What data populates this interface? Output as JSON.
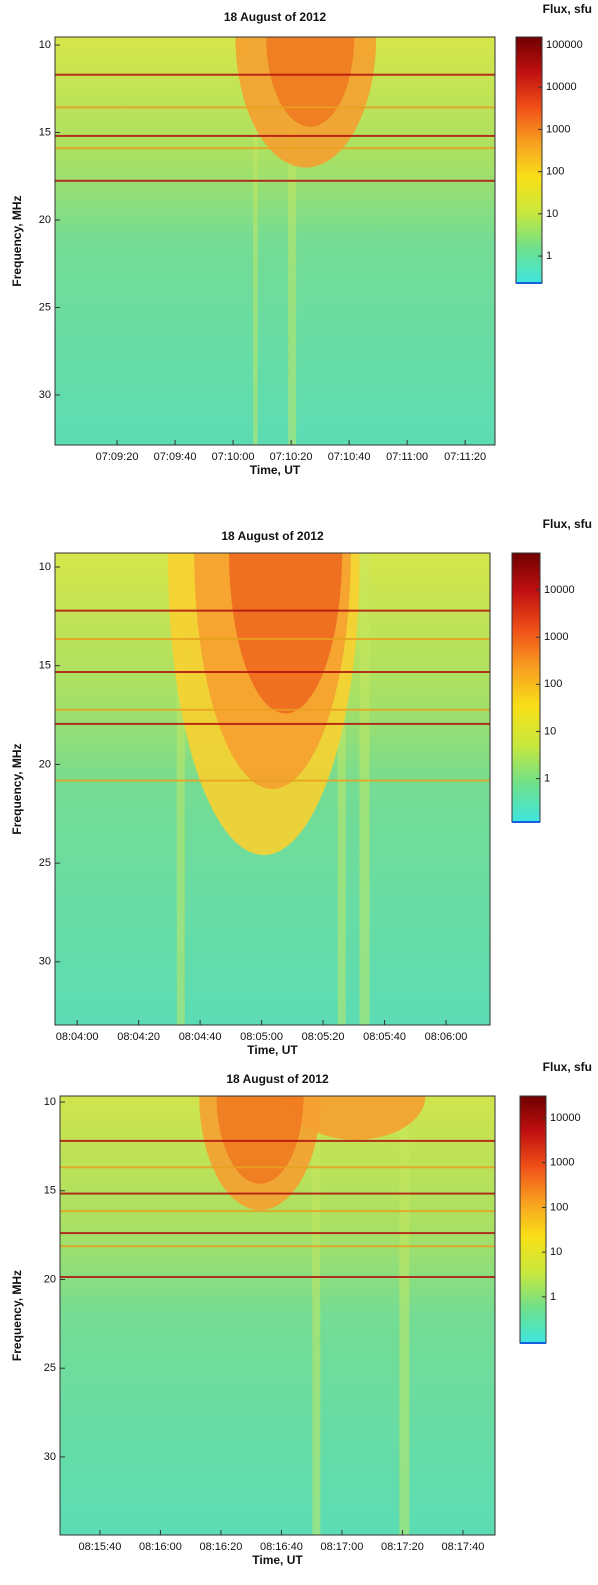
{
  "chart_data": [
    {
      "type": "heatmap",
      "title": "18 August of 2012",
      "x_label": "Time, UT",
      "y_label": "Frequency, MHz",
      "xlim": [
        25738.6,
        25890.3
      ],
      "xticks": [
        {
          "value": 25760,
          "label": "07:09:20"
        },
        {
          "value": 25780,
          "label": "07:09:40"
        },
        {
          "value": 25800,
          "label": "07:10:00"
        },
        {
          "value": 25820,
          "label": "07:10:20"
        },
        {
          "value": 25840,
          "label": "07:10:40"
        },
        {
          "value": 25860,
          "label": "07:11:00"
        },
        {
          "value": 25880,
          "label": "07:11:20"
        }
      ],
      "ylim": [
        9.54,
        32.86
      ],
      "y_inverted": true,
      "yticks": [
        10,
        15,
        20,
        25,
        30
      ],
      "colorbar": {
        "label": "Flux, sfu",
        "log": true,
        "lim": [
          0.23,
          155000
        ],
        "ticks": [
          1,
          10,
          100,
          1000,
          10000,
          100000
        ],
        "colormap": [
          "#3ee6e0",
          "#6fe08a",
          "#c8e83c",
          "#f8e018",
          "#f8a020",
          "#f05018",
          "#c01010",
          "#700000"
        ]
      }
    },
    {
      "type": "heatmap",
      "title": "18 August of 2012",
      "x_label": "Time, UT",
      "y_label": "Frequency, MHz",
      "xlim": [
        29032.8,
        29174.3
      ],
      "xticks": [
        {
          "value": 29040,
          "label": "08:04:00"
        },
        {
          "value": 29060,
          "label": "08:04:20"
        },
        {
          "value": 29080,
          "label": "08:04:40"
        },
        {
          "value": 29100,
          "label": "08:05:00"
        },
        {
          "value": 29120,
          "label": "08:05:20"
        },
        {
          "value": 29140,
          "label": "08:05:40"
        },
        {
          "value": 29160,
          "label": "08:06:00"
        }
      ],
      "ylim": [
        9.29,
        33.2
      ],
      "y_inverted": true,
      "yticks": [
        10,
        15,
        20,
        25,
        30
      ],
      "colorbar": {
        "label": "Flux, sfu",
        "log": true,
        "lim": [
          0.12,
          61000
        ],
        "ticks": [
          1,
          10,
          100,
          1000,
          10000
        ],
        "colormap": [
          "#3ee6e0",
          "#6fe08a",
          "#c8e83c",
          "#f8e018",
          "#f8a020",
          "#f05018",
          "#c01010",
          "#700000"
        ]
      }
    },
    {
      "type": "heatmap",
      "title": "18 August of 2012",
      "x_label": "Time, UT",
      "y_label": "Frequency, MHz",
      "xlim": [
        29726.8,
        29870.6
      ],
      "xticks": [
        {
          "value": 29740,
          "label": "08:15:40"
        },
        {
          "value": 29760,
          "label": "08:16:00"
        },
        {
          "value": 29780,
          "label": "08:16:20"
        },
        {
          "value": 29800,
          "label": "08:16:40"
        },
        {
          "value": 29820,
          "label": "08:17:00"
        },
        {
          "value": 29840,
          "label": "08:17:20"
        },
        {
          "value": 29860,
          "label": "08:17:40"
        }
      ],
      "ylim": [
        9.66,
        34.4
      ],
      "y_inverted": true,
      "yticks": [
        10,
        15,
        20,
        25,
        30
      ],
      "colorbar": {
        "label": "Flux, sfu",
        "log": true,
        "lim": [
          0.093,
          31000
        ],
        "ticks": [
          1,
          10,
          100,
          1000,
          10000
        ],
        "colormap": [
          "#3ee6e0",
          "#6fe08a",
          "#c8e83c",
          "#f8e018",
          "#f8a020",
          "#f05018",
          "#c01010",
          "#700000"
        ]
      }
    }
  ]
}
